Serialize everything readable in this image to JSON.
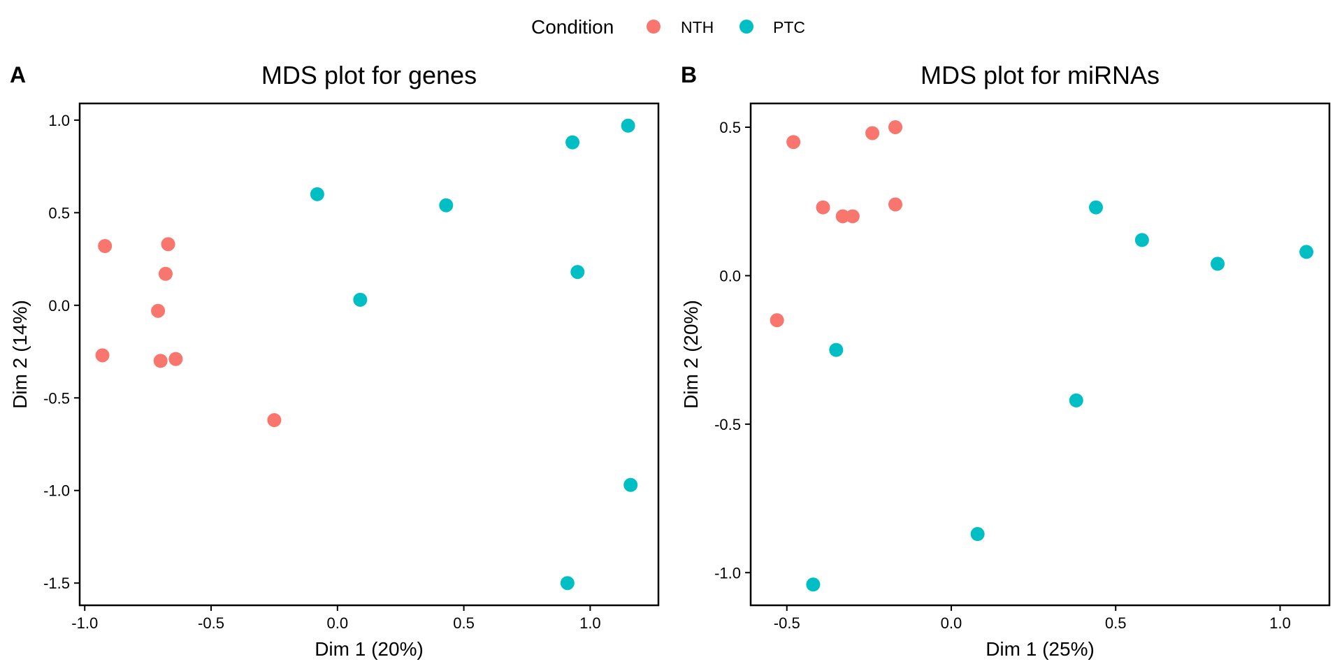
{
  "legend": {
    "title": "Condition",
    "position": "top",
    "entries": [
      {
        "key": "NTH",
        "label": "NTH",
        "color": "#F8766D"
      },
      {
        "key": "PTC",
        "label": "PTC",
        "color": "#00BFC4"
      }
    ]
  },
  "chart_data": [
    {
      "type": "scatter",
      "panel_label": "A",
      "title": "MDS plot for genes",
      "xlabel": "Dim 1 (20%)",
      "ylabel": "Dim 2 (14%)",
      "xlim": [
        -1.02,
        1.27
      ],
      "ylim": [
        -1.62,
        1.09
      ],
      "xticks": [
        -1.0,
        -0.5,
        0.0,
        0.5,
        1.0
      ],
      "xtick_labels": [
        "-1.0",
        "-0.5",
        "0.0",
        "0.5",
        "1.0"
      ],
      "yticks": [
        -1.5,
        -1.0,
        -0.5,
        0.0,
        0.5,
        1.0
      ],
      "ytick_labels": [
        "-1.5",
        "-1.0",
        "-0.5",
        "0.0",
        "0.5",
        "1.0"
      ],
      "grid": false,
      "series": [
        {
          "name": "NTH",
          "points": [
            {
              "x": -0.92,
              "y": 0.32
            },
            {
              "x": -0.67,
              "y": 0.33
            },
            {
              "x": -0.68,
              "y": 0.17
            },
            {
              "x": -0.71,
              "y": -0.03
            },
            {
              "x": -0.93,
              "y": -0.27
            },
            {
              "x": -0.7,
              "y": -0.3
            },
            {
              "x": -0.64,
              "y": -0.29
            },
            {
              "x": -0.25,
              "y": -0.62
            }
          ]
        },
        {
          "name": "PTC",
          "points": [
            {
              "x": -0.08,
              "y": 0.6
            },
            {
              "x": 0.43,
              "y": 0.54
            },
            {
              "x": 0.09,
              "y": 0.03
            },
            {
              "x": 0.93,
              "y": 0.88
            },
            {
              "x": 1.15,
              "y": 0.97
            },
            {
              "x": 0.95,
              "y": 0.18
            },
            {
              "x": 1.16,
              "y": -0.97
            },
            {
              "x": 0.91,
              "y": -1.5
            }
          ]
        }
      ]
    },
    {
      "type": "scatter",
      "panel_label": "B",
      "title": "MDS plot for miRNAs",
      "xlabel": "Dim 1 (25%)",
      "ylabel": "Dim 2 (20%)",
      "xlim": [
        -0.61,
        1.15
      ],
      "ylim": [
        -1.11,
        0.58
      ],
      "xticks": [
        -0.5,
        0.0,
        0.5,
        1.0
      ],
      "xtick_labels": [
        "-0.5",
        "0.0",
        "0.5",
        "1.0"
      ],
      "yticks": [
        -1.0,
        -0.5,
        0.0,
        0.5
      ],
      "ytick_labels": [
        "-1.0",
        "-0.5",
        "0.0",
        "0.5"
      ],
      "grid": false,
      "series": [
        {
          "name": "NTH",
          "points": [
            {
              "x": -0.48,
              "y": 0.45
            },
            {
              "x": -0.24,
              "y": 0.48
            },
            {
              "x": -0.17,
              "y": 0.5
            },
            {
              "x": -0.39,
              "y": 0.23
            },
            {
              "x": -0.33,
              "y": 0.2
            },
            {
              "x": -0.3,
              "y": 0.2
            },
            {
              "x": -0.17,
              "y": 0.24
            },
            {
              "x": -0.53,
              "y": -0.15
            }
          ]
        },
        {
          "name": "PTC",
          "points": [
            {
              "x": 0.44,
              "y": 0.23
            },
            {
              "x": 0.58,
              "y": 0.12
            },
            {
              "x": 0.81,
              "y": 0.04
            },
            {
              "x": 1.08,
              "y": 0.08
            },
            {
              "x": -0.35,
              "y": -0.25
            },
            {
              "x": 0.38,
              "y": -0.42
            },
            {
              "x": 0.08,
              "y": -0.87
            },
            {
              "x": -0.42,
              "y": -1.04
            }
          ]
        }
      ]
    }
  ]
}
